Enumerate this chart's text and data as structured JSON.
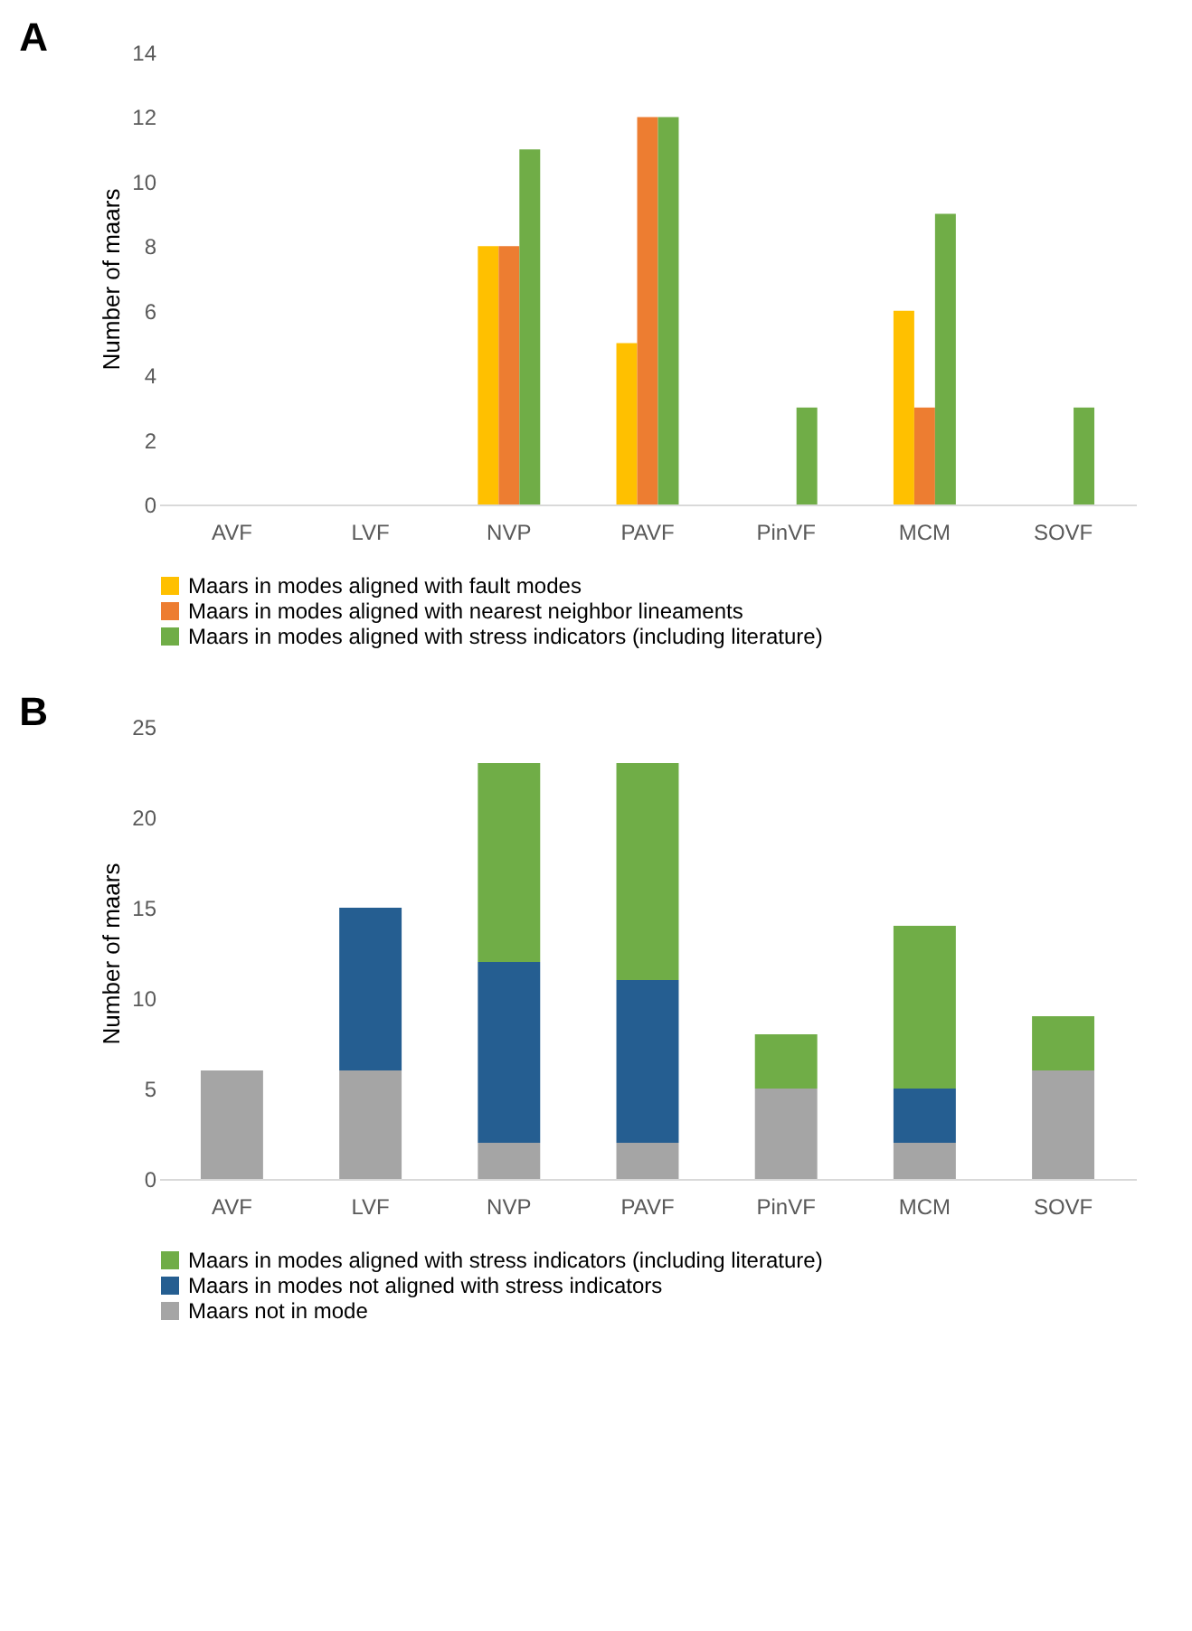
{
  "chart_data": [
    {
      "type": "bar",
      "title": "A",
      "ylabel": "Number of maars",
      "categories": [
        "AVF",
        "LVF",
        "NVP",
        "PAVF",
        "PinVF",
        "MCM",
        "SOVF"
      ],
      "ylim": [
        0,
        14
      ],
      "yticks": [
        0,
        2,
        4,
        6,
        8,
        10,
        12,
        14
      ],
      "grid": false,
      "legend": "bottom",
      "series": [
        {
          "name": "Maars in modes aligned with fault modes",
          "color": "#ffc000",
          "values": [
            0,
            0,
            8,
            5,
            0,
            6,
            0
          ]
        },
        {
          "name": "Maars in modes aligned with nearest neighbor lineaments",
          "color": "#ed7d31",
          "values": [
            0,
            0,
            8,
            12,
            0,
            3,
            0
          ]
        },
        {
          "name": "Maars in modes aligned with stress indicators (including literature)",
          "color": "#70ad47",
          "values": [
            0,
            0,
            11,
            12,
            3,
            9,
            3
          ]
        }
      ]
    },
    {
      "type": "bar",
      "title": "B",
      "ylabel": "Number of maars",
      "categories": [
        "AVF",
        "LVF",
        "NVP",
        "PAVF",
        "PinVF",
        "MCM",
        "SOVF"
      ],
      "ylim": [
        0,
        25
      ],
      "yticks": [
        0,
        5,
        10,
        15,
        20,
        25
      ],
      "grid": false,
      "legend": "bottom",
      "stacked": true,
      "series": [
        {
          "name": "Maars not in mode",
          "color": "#a5a5a5",
          "values": [
            6,
            6,
            2,
            2,
            5,
            2,
            6
          ]
        },
        {
          "name": "Maars in modes not aligned with stress indicators",
          "color": "#255e91",
          "values": [
            0,
            9,
            10,
            9,
            0,
            3,
            0
          ]
        },
        {
          "name": "Maars in modes aligned with stress indicators (including literature)",
          "color": "#70ad47",
          "values": [
            0,
            0,
            11,
            12,
            3,
            9,
            3
          ]
        }
      ]
    }
  ]
}
